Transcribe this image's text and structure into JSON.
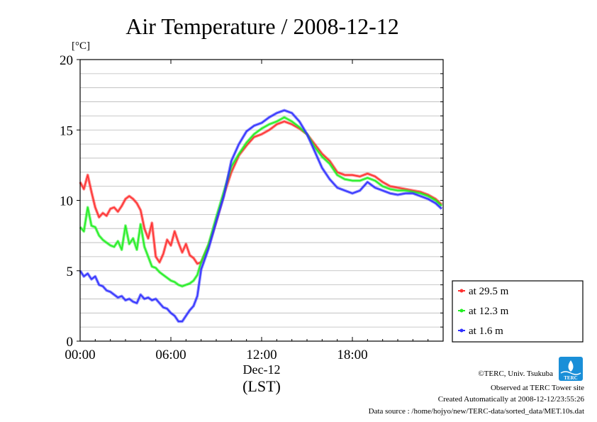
{
  "chart_data": {
    "type": "line",
    "title": "Air Temperature / 2008-12-12",
    "ylabel": "[°C]",
    "xlabel": "(LST)",
    "date_label": "Dec-12",
    "ylim": [
      0,
      20
    ],
    "xlim": [
      0,
      24
    ],
    "y_ticks": [
      "0",
      "5",
      "10",
      "15",
      "20"
    ],
    "x_ticks": [
      "00:00",
      "06:00",
      "12:00",
      "18:00"
    ],
    "x_tick_values": [
      0,
      6,
      12,
      18
    ],
    "grid": true,
    "legend_position": "right",
    "series": [
      {
        "name": "at 29.5 m",
        "color": "#ff3030",
        "x": [
          0.0,
          0.25,
          0.5,
          0.75,
          1.0,
          1.25,
          1.5,
          1.75,
          2.0,
          2.25,
          2.5,
          2.75,
          3.0,
          3.25,
          3.5,
          3.75,
          4.0,
          4.25,
          4.5,
          4.75,
          5.0,
          5.25,
          5.5,
          5.75,
          6.0,
          6.25,
          6.5,
          6.75,
          7.0,
          7.25,
          7.5,
          7.75,
          8.0,
          8.5,
          9.0,
          9.5,
          10.0,
          10.5,
          11.0,
          11.5,
          12.0,
          12.5,
          13.0,
          13.5,
          14.0,
          14.5,
          15.0,
          15.5,
          16.0,
          16.5,
          17.0,
          17.5,
          18.0,
          18.5,
          19.0,
          19.5,
          20.0,
          20.5,
          21.0,
          21.5,
          22.0,
          22.5,
          23.0,
          23.5,
          23.9
        ],
        "values": [
          11.3,
          10.8,
          11.8,
          10.6,
          9.5,
          8.8,
          9.1,
          8.9,
          9.4,
          9.5,
          9.2,
          9.6,
          10.1,
          10.3,
          10.1,
          9.8,
          9.3,
          8.0,
          7.3,
          8.4,
          6.0,
          5.6,
          6.2,
          7.2,
          6.8,
          7.8,
          7.0,
          6.3,
          6.9,
          6.1,
          5.9,
          5.5,
          5.6,
          6.8,
          8.5,
          10.4,
          12.0,
          13.2,
          13.9,
          14.5,
          14.7,
          15.0,
          15.4,
          15.6,
          15.4,
          15.1,
          14.7,
          14.0,
          13.3,
          12.8,
          12.0,
          11.8,
          11.8,
          11.7,
          11.9,
          11.7,
          11.3,
          11.0,
          10.9,
          10.8,
          10.7,
          10.6,
          10.4,
          10.1,
          9.7
        ]
      },
      {
        "name": "at 12.3 m",
        "color": "#22ee22",
        "x": [
          0.0,
          0.25,
          0.5,
          0.75,
          1.0,
          1.25,
          1.5,
          1.75,
          2.0,
          2.25,
          2.5,
          2.75,
          3.0,
          3.25,
          3.5,
          3.75,
          4.0,
          4.25,
          4.5,
          4.75,
          5.0,
          5.25,
          5.5,
          5.75,
          6.0,
          6.25,
          6.5,
          6.75,
          7.0,
          7.25,
          7.5,
          7.75,
          8.0,
          8.5,
          9.0,
          9.5,
          10.0,
          10.5,
          11.0,
          11.5,
          12.0,
          12.5,
          13.0,
          13.5,
          14.0,
          14.5,
          15.0,
          15.5,
          16.0,
          16.5,
          17.0,
          17.5,
          18.0,
          18.5,
          19.0,
          19.5,
          20.0,
          20.5,
          21.0,
          21.5,
          22.0,
          22.5,
          23.0,
          23.5,
          23.9
        ],
        "values": [
          8.1,
          7.8,
          9.5,
          8.2,
          8.1,
          7.5,
          7.2,
          7.0,
          6.8,
          6.7,
          7.1,
          6.5,
          8.2,
          6.9,
          7.3,
          6.5,
          8.3,
          6.7,
          6.0,
          5.3,
          5.2,
          4.9,
          4.7,
          4.5,
          4.3,
          4.2,
          4.0,
          3.9,
          4.0,
          4.1,
          4.3,
          4.7,
          5.6,
          6.9,
          8.8,
          10.6,
          12.4,
          13.3,
          14.1,
          14.7,
          15.1,
          15.4,
          15.6,
          15.9,
          15.6,
          15.2,
          14.7,
          13.8,
          13.1,
          12.6,
          11.8,
          11.5,
          11.4,
          11.4,
          11.6,
          11.4,
          11.0,
          10.8,
          10.7,
          10.7,
          10.6,
          10.5,
          10.3,
          10.0,
          9.6
        ]
      },
      {
        "name": "at 1.6 m",
        "color": "#3030ff",
        "x": [
          0.0,
          0.25,
          0.5,
          0.75,
          1.0,
          1.25,
          1.5,
          1.75,
          2.0,
          2.25,
          2.5,
          2.75,
          3.0,
          3.25,
          3.5,
          3.75,
          4.0,
          4.25,
          4.5,
          4.75,
          5.0,
          5.25,
          5.5,
          5.75,
          6.0,
          6.25,
          6.5,
          6.75,
          7.0,
          7.25,
          7.5,
          7.75,
          8.0,
          8.5,
          9.0,
          9.5,
          10.0,
          10.5,
          11.0,
          11.5,
          12.0,
          12.5,
          13.0,
          13.5,
          14.0,
          14.5,
          15.0,
          15.5,
          16.0,
          16.5,
          17.0,
          17.5,
          18.0,
          18.5,
          19.0,
          19.5,
          20.0,
          20.5,
          21.0,
          21.5,
          22.0,
          22.5,
          23.0,
          23.5,
          23.9
        ],
        "values": [
          5.0,
          4.6,
          4.8,
          4.4,
          4.6,
          4.0,
          3.9,
          3.6,
          3.5,
          3.3,
          3.1,
          3.2,
          2.9,
          3.0,
          2.8,
          2.7,
          3.3,
          3.0,
          3.1,
          2.9,
          3.0,
          2.7,
          2.4,
          2.3,
          2.0,
          1.8,
          1.4,
          1.4,
          1.8,
          2.2,
          2.5,
          3.2,
          5.1,
          6.6,
          8.5,
          10.3,
          12.8,
          14.0,
          14.9,
          15.3,
          15.5,
          15.9,
          16.2,
          16.4,
          16.2,
          15.6,
          14.7,
          13.5,
          12.3,
          11.5,
          10.9,
          10.7,
          10.5,
          10.7,
          11.3,
          10.9,
          10.7,
          10.5,
          10.4,
          10.5,
          10.5,
          10.3,
          10.1,
          9.8,
          9.4
        ]
      }
    ]
  },
  "credits": {
    "copyright": "©TERC, Univ. Tsukuba",
    "observed": "Observed at TERC Tower site",
    "created": "Created Automatically at 2008-12-12/23:55:26",
    "source": "Data source : /home/hojyo/new/TERC-data/sorted_data/MET.10s.dat"
  },
  "logo": {
    "text": "TERC",
    "color": "#1a8fd8"
  }
}
